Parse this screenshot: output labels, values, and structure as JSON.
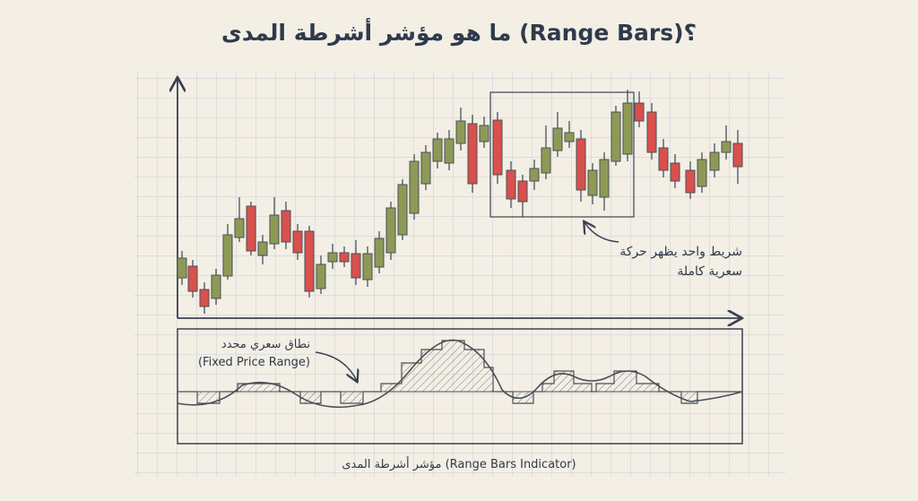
{
  "header": {
    "title": "ما هو مؤشر أشرطة المدى (Range Bars)؟"
  },
  "annotations": {
    "single_bar": [
      "شريط واحد يظهر حركة",
      "سعرية كاملة"
    ],
    "fixed_range": [
      "نطاق سعري محدد",
      "(Fixed Price Range)"
    ]
  },
  "caption": "مؤشر أشرطة المدى (Range Bars Indicator)"
}
